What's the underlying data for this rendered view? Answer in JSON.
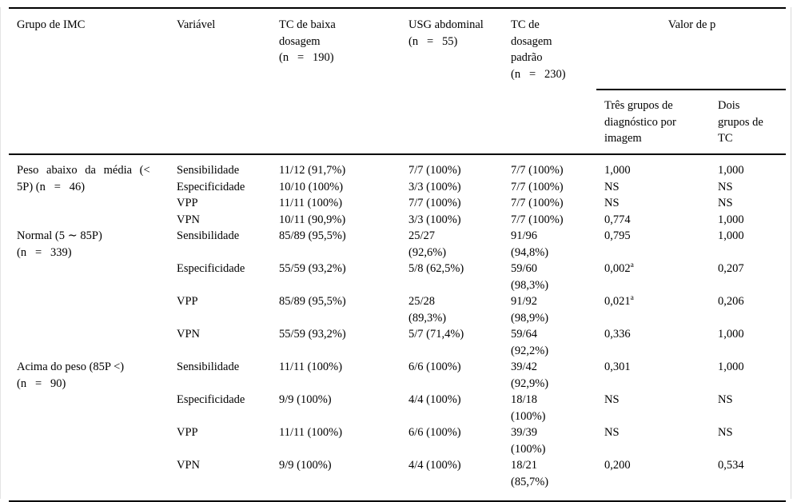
{
  "header": {
    "col1": "Grupo de IMC",
    "col2": "Variável",
    "col3_title": "TC de baixa\ndosagem",
    "col3_n": "(n   =   190)",
    "col4_title": "USG abdominal",
    "col4_n": "(n   =   55)",
    "col5_title": "TC de\ndosagem\npadrão",
    "col5_n": "(n   =   230)",
    "p_label": "Valor de p",
    "p_sub1": "Três grupos de\ndiagnóstico por\nimagem",
    "p_sub2": "Dois\ngrupos de\nTC"
  },
  "groups": [
    {
      "label1": "Peso abaixo da média (<",
      "label2": "5P) (n   =   46)",
      "rows": [
        {
          "v": "Sensibilidade",
          "c1": "11/12 (91,7%)",
          "c2": "7/7 (100%)",
          "c3": "7/7 (100%)",
          "p3": "1,000",
          "p2": "1,000"
        },
        {
          "v": "Especificidade",
          "c1": "10/10 (100%)",
          "c2": "3/3 (100%)",
          "c3": "7/7 (100%)",
          "p3": "NS",
          "p2": "NS"
        },
        {
          "v": "VPP",
          "c1": "11/11 (100%)",
          "c2": "7/7 (100%)",
          "c3": "7/7 (100%)",
          "p3": "NS",
          "p2": "NS"
        },
        {
          "v": "VPN",
          "c1": "10/11 (90,9%)",
          "c2": "3/3 (100%)",
          "c3": "7/7 (100%)",
          "p3": "0,774",
          "p2": "1,000"
        }
      ]
    },
    {
      "label1": "Normal (5 ∼ 85P)",
      "label2": "(n   =   339)",
      "rows": [
        {
          "v": "Sensibilidade",
          "c1": "85/89 (95,5%)",
          "c2": "25/27\n(92,6%)",
          "c3": "91/96\n(94,8%)",
          "p3": "0,795",
          "p2": "1,000"
        },
        {
          "v": "Especificidade",
          "c1": "55/59 (93,2%)",
          "c2": "5/8 (62,5%)",
          "c3": "59/60\n(98,3%)",
          "p3": "0,002",
          "p3sup": "a",
          "p2": "0,207"
        },
        {
          "v": "VPP",
          "c1": "85/89 (95,5%)",
          "c2": "25/28\n(89,3%)",
          "c3": "91/92\n(98,9%)",
          "p3": "0,021",
          "p3sup": "a",
          "p2": "0,206"
        },
        {
          "v": "VPN",
          "c1": "55/59 (93,2%)",
          "c2": "5/7 (71,4%)",
          "c3": "59/64\n(92,2%)",
          "p3": "0,336",
          "p2": "1,000"
        }
      ]
    },
    {
      "label1": "Acima do peso (85P <)",
      "label2": "(n   =   90)",
      "rows": [
        {
          "v": "Sensibilidade",
          "c1": "11/11 (100%)",
          "c2": "6/6 (100%)",
          "c3": "39/42\n(92,9%)",
          "p3": "0,301",
          "p2": "1,000"
        },
        {
          "v": "Especificidade",
          "c1": "9/9 (100%)",
          "c2": "4/4 (100%)",
          "c3": "18/18\n(100%)",
          "p3": "NS",
          "p2": "NS"
        },
        {
          "v": "VPP",
          "c1": "11/11 (100%)",
          "c2": "6/6 (100%)",
          "c3": "39/39\n(100%)",
          "p3": "NS",
          "p2": "NS"
        },
        {
          "v": "VPN",
          "c1": "9/9 (100%)",
          "c2": "4/4 (100%)",
          "c3": "18/21\n(85,7%)",
          "p3": "0,200",
          "p2": "0,534"
        }
      ]
    }
  ]
}
